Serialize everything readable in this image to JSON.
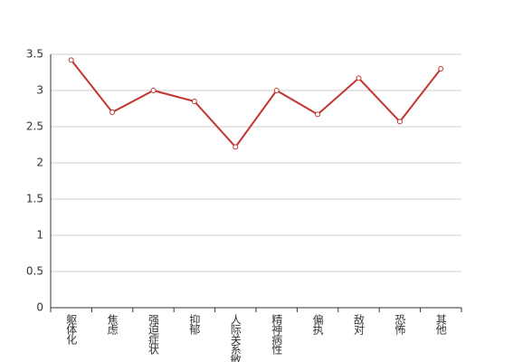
{
  "chart_data": {
    "type": "line",
    "categories": [
      "躯体化",
      "焦虑",
      "强迫症状",
      "抑郁",
      "人际关系敏感",
      "精神病性",
      "偏执",
      "敌对",
      "恐怖",
      "其他"
    ],
    "values": [
      3.42,
      2.7,
      3.0,
      2.85,
      2.22,
      3.0,
      2.67,
      3.17,
      2.57,
      3.3
    ],
    "color": "#c23531",
    "ylim": [
      0,
      3.5
    ],
    "yticks": [
      0,
      0.5,
      1,
      1.5,
      2,
      2.5,
      3,
      3.5
    ],
    "grid": true
  }
}
